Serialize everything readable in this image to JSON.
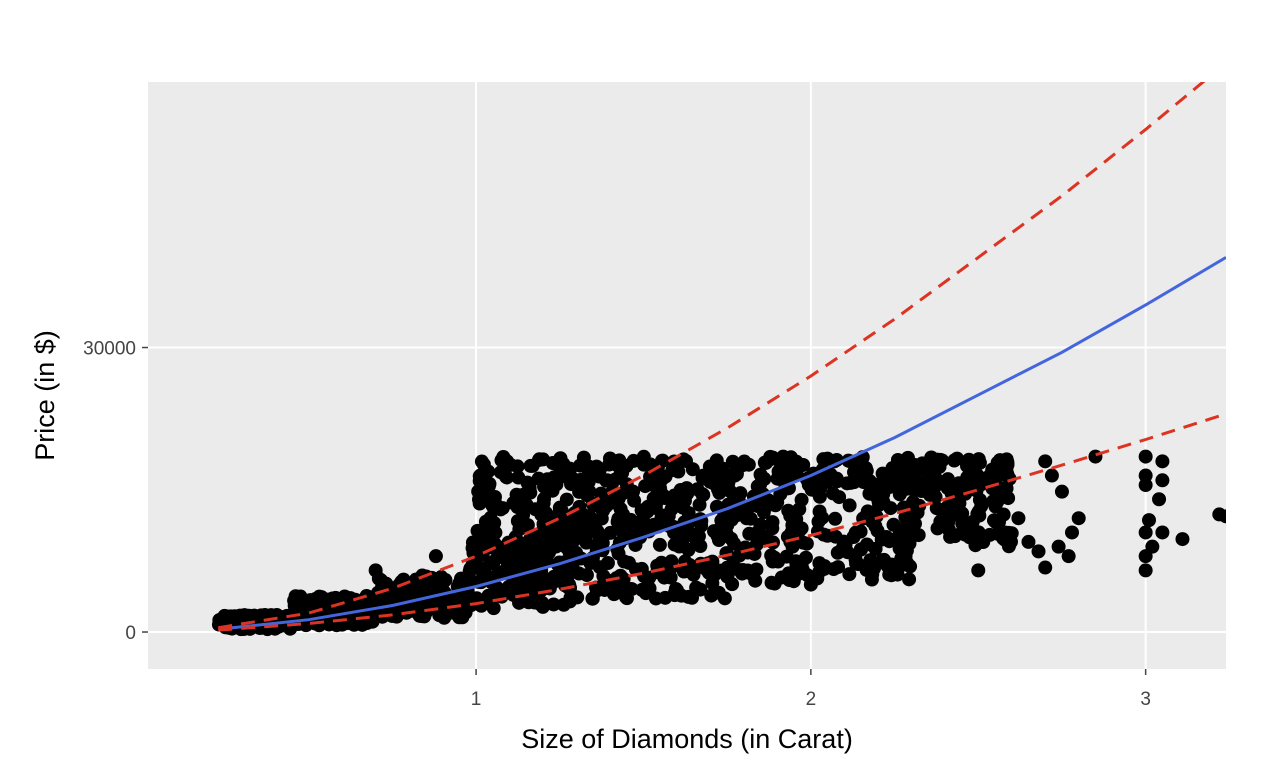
{
  "chart_data": {
    "type": "scatter",
    "title": "",
    "xlabel": "Size of Diamonds (in Carat)",
    "ylabel": "Price (in $)",
    "xlim": [
      0.02,
      3.24
    ],
    "ylim": [
      -3900,
      58000
    ],
    "xticks": [
      1,
      2,
      3
    ],
    "xtick_labels": [
      "1",
      "2",
      "3"
    ],
    "yticks": [
      0,
      30000
    ],
    "ytick_labels": [
      "0",
      "30000"
    ],
    "grid": true,
    "legend": "none",
    "colors": {
      "panel": "#ebebeb",
      "grid": "#ffffff",
      "points": "#000000",
      "fit_line": "#4466dd",
      "interval": "#dd3322"
    },
    "series": [
      {
        "kind": "points",
        "clusters": [
          {
            "x": [
              0.23,
              0.45
            ],
            "y": [
              300,
              1800
            ]
          },
          {
            "x": [
              0.45,
              0.7
            ],
            "y": [
              700,
              3800
            ]
          },
          {
            "x": [
              0.7,
              0.98
            ],
            "y": [
              1500,
              6000
            ]
          },
          {
            "x": [
              0.98,
              1.3
            ],
            "y": [
              2500,
              10000
            ]
          },
          {
            "x": [
              1.0,
              1.3
            ],
            "y": [
              9000,
              18500
            ]
          },
          {
            "x": [
              1.3,
              1.75
            ],
            "y": [
              3500,
              12000
            ]
          },
          {
            "x": [
              1.3,
              1.75
            ],
            "y": [
              11000,
              18500
            ]
          },
          {
            "x": [
              1.75,
              2.0
            ],
            "y": [
              5000,
              18500
            ]
          },
          {
            "x": [
              2.0,
              2.3
            ],
            "y": [
              5500,
              18500
            ]
          },
          {
            "x": [
              2.3,
              2.6
            ],
            "y": [
              9000,
              18500
            ]
          }
        ],
        "points": [
          [
            0.7,
            6500
          ],
          [
            0.88,
            8000
          ],
          [
            1.2,
            18200
          ],
          [
            1.4,
            18300
          ],
          [
            1.62,
            18200
          ],
          [
            2.0,
            5000
          ],
          [
            2.5,
            6500
          ],
          [
            2.58,
            10500
          ],
          [
            2.62,
            12000
          ],
          [
            2.7,
            18000
          ],
          [
            2.72,
            16500
          ],
          [
            2.75,
            14800
          ],
          [
            2.78,
            10500
          ],
          [
            2.8,
            12000
          ],
          [
            2.65,
            9500
          ],
          [
            2.7,
            6800
          ],
          [
            2.68,
            8500
          ],
          [
            2.74,
            9000
          ],
          [
            2.77,
            8000
          ],
          [
            2.85,
            18500
          ],
          [
            3.0,
            18500
          ],
          [
            3.0,
            16500
          ],
          [
            3.0,
            15500
          ],
          [
            3.01,
            11800
          ],
          [
            3.0,
            10500
          ],
          [
            3.0,
            8000
          ],
          [
            3.0,
            6500
          ],
          [
            3.02,
            9000
          ],
          [
            3.04,
            14000
          ],
          [
            3.05,
            16000
          ],
          [
            3.05,
            10500
          ],
          [
            3.05,
            18000
          ],
          [
            3.11,
            9800
          ],
          [
            3.22,
            12400
          ],
          [
            3.24,
            12200
          ]
        ]
      },
      {
        "kind": "line",
        "style": "solid",
        "x": [
          0.23,
          0.5,
          0.75,
          1.0,
          1.25,
          1.5,
          1.75,
          2.0,
          2.25,
          2.5,
          2.75,
          3.0,
          3.24
        ],
        "y": [
          300,
          1300,
          2800,
          4800,
          7200,
          10000,
          13000,
          16500,
          20500,
          25000,
          29500,
          34500,
          39500
        ]
      },
      {
        "kind": "line",
        "style": "dashed",
        "x": [
          0.23,
          0.5,
          0.75,
          1.0,
          1.25,
          1.5,
          1.75,
          2.0,
          2.25,
          2.5,
          2.75,
          3.0,
          3.24
        ],
        "y": [
          450,
          2000,
          4600,
          8000,
          12000,
          16500,
          21500,
          27000,
          33000,
          39500,
          46000,
          53000,
          60000
        ]
      },
      {
        "kind": "line",
        "style": "dashed",
        "x": [
          0.23,
          0.5,
          0.75,
          1.0,
          1.25,
          1.5,
          1.75,
          2.0,
          2.25,
          2.5,
          2.75,
          3.0,
          3.24
        ],
        "y": [
          200,
          900,
          1800,
          3000,
          4500,
          6200,
          8100,
          10200,
          12500,
          15000,
          17600,
          20300,
          23000
        ]
      }
    ]
  }
}
